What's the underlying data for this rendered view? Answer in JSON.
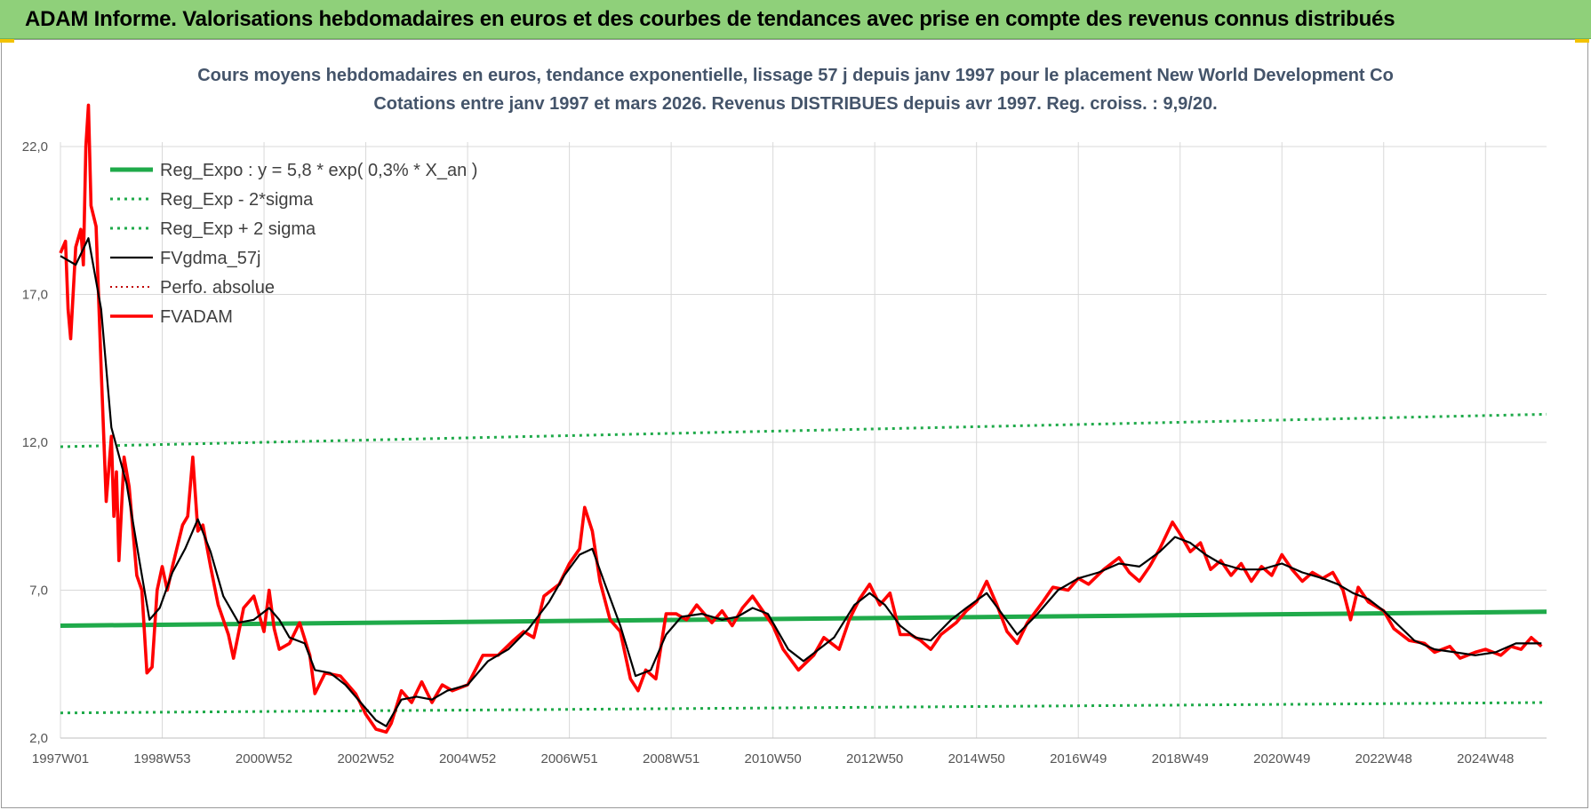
{
  "header": {
    "title": "ADAM Informe. Valorisations hebdomadaires en euros et des courbes de tendances avec prise en compte des revenus connus distribués"
  },
  "colors": {
    "banner": "#8fd07a",
    "reg_expo": "#1faa4a",
    "sigma": "#1faa4a",
    "fvgdma": "#000000",
    "perfo": "#c00000",
    "fvadam": "#ff0000",
    "grid": "#d9d9d9"
  },
  "chart_data": {
    "type": "line",
    "title": "Cours moyens hebdomadaires en euros, tendance exponentielle, lissage 57 j depuis janv 1997 pour le placement New World Development Co",
    "subtitle": "Cotations entre janv 1997 et mars 2026. Revenus DISTRIBUES depuis avr 1997. Reg. croiss. : 9,9/20.",
    "xlabel": "",
    "ylabel": "",
    "ylim": [
      2.0,
      22.0
    ],
    "xlim": [
      1997.0,
      2026.2
    ],
    "y_ticks": [
      "22,0",
      "17,0",
      "12,0",
      "7,0",
      "2,0"
    ],
    "y_tick_values": [
      22,
      17,
      12,
      7,
      2
    ],
    "x_ticks": [
      "1997W01",
      "1998W53",
      "2000W52",
      "2002W52",
      "2004W52",
      "2006W51",
      "2008W51",
      "2010W50",
      "2012W50",
      "2014W50",
      "2016W49",
      "2018W49",
      "2020W49",
      "2022W48",
      "2024W48"
    ],
    "x_tick_values": [
      1997.0,
      1999.0,
      2001.0,
      2003.0,
      2005.0,
      2007.0,
      2009.0,
      2011.0,
      2013.0,
      2015.0,
      2017.0,
      2019.0,
      2021.0,
      2023.0,
      2025.0
    ],
    "grid": true,
    "legend_position": "top-left",
    "series": [
      {
        "name": "Reg_Expo : y = 5,8 * exp( 0,3% *  X_an )",
        "style": "solid-thick",
        "points": [
          [
            1997.0,
            5.8
          ],
          [
            2026.2,
            6.27
          ]
        ]
      },
      {
        "name": "Reg_Exp - 2*sigma",
        "style": "dotted",
        "points": [
          [
            1997.0,
            2.85
          ],
          [
            2026.2,
            3.2
          ]
        ]
      },
      {
        "name": "Reg_Exp + 2 sigma",
        "style": "dotted",
        "points": [
          [
            1997.0,
            11.85
          ],
          [
            2026.2,
            12.95
          ]
        ]
      },
      {
        "name": "FVgdma_57j",
        "style": "solid-thin",
        "points": [
          [
            1997.0,
            18.3
          ],
          [
            1997.3,
            18.0
          ],
          [
            1997.55,
            18.9
          ],
          [
            1997.8,
            16.5
          ],
          [
            1998.0,
            12.5
          ],
          [
            1998.3,
            10.6
          ],
          [
            1998.55,
            8.0
          ],
          [
            1998.75,
            6.0
          ],
          [
            1998.95,
            6.4
          ],
          [
            1999.2,
            7.6
          ],
          [
            1999.45,
            8.4
          ],
          [
            1999.7,
            9.4
          ],
          [
            1999.95,
            8.3
          ],
          [
            2000.2,
            6.8
          ],
          [
            2000.5,
            5.9
          ],
          [
            2000.8,
            6.0
          ],
          [
            2001.1,
            6.4
          ],
          [
            2001.3,
            6.0
          ],
          [
            2001.5,
            5.4
          ],
          [
            2001.8,
            5.2
          ],
          [
            2002.0,
            4.3
          ],
          [
            2002.3,
            4.2
          ],
          [
            2002.6,
            3.8
          ],
          [
            2002.9,
            3.2
          ],
          [
            2003.2,
            2.6
          ],
          [
            2003.4,
            2.4
          ],
          [
            2003.7,
            3.3
          ],
          [
            2004.0,
            3.4
          ],
          [
            2004.3,
            3.3
          ],
          [
            2004.6,
            3.6
          ],
          [
            2005.0,
            3.8
          ],
          [
            2005.4,
            4.6
          ],
          [
            2005.8,
            5.0
          ],
          [
            2006.2,
            5.7
          ],
          [
            2006.6,
            6.6
          ],
          [
            2006.9,
            7.5
          ],
          [
            2007.2,
            8.2
          ],
          [
            2007.45,
            8.4
          ],
          [
            2007.7,
            7.2
          ],
          [
            2008.0,
            5.8
          ],
          [
            2008.3,
            4.1
          ],
          [
            2008.6,
            4.3
          ],
          [
            2008.9,
            5.5
          ],
          [
            2009.2,
            6.1
          ],
          [
            2009.6,
            6.2
          ],
          [
            2010.0,
            6.0
          ],
          [
            2010.3,
            6.1
          ],
          [
            2010.6,
            6.4
          ],
          [
            2010.9,
            6.2
          ],
          [
            2011.3,
            5.0
          ],
          [
            2011.6,
            4.6
          ],
          [
            2011.9,
            5.0
          ],
          [
            2012.2,
            5.4
          ],
          [
            2012.6,
            6.5
          ],
          [
            2012.9,
            6.9
          ],
          [
            2013.2,
            6.5
          ],
          [
            2013.5,
            5.8
          ],
          [
            2013.8,
            5.4
          ],
          [
            2014.1,
            5.3
          ],
          [
            2014.5,
            6.0
          ],
          [
            2014.8,
            6.4
          ],
          [
            2015.2,
            6.9
          ],
          [
            2015.5,
            6.2
          ],
          [
            2015.8,
            5.5
          ],
          [
            2016.2,
            6.2
          ],
          [
            2016.6,
            7.0
          ],
          [
            2017.0,
            7.4
          ],
          [
            2017.4,
            7.6
          ],
          [
            2017.8,
            7.9
          ],
          [
            2018.2,
            7.8
          ],
          [
            2018.6,
            8.3
          ],
          [
            2018.9,
            8.8
          ],
          [
            2019.2,
            8.6
          ],
          [
            2019.5,
            8.2
          ],
          [
            2019.8,
            7.9
          ],
          [
            2020.2,
            7.7
          ],
          [
            2020.6,
            7.7
          ],
          [
            2021.0,
            7.9
          ],
          [
            2021.4,
            7.6
          ],
          [
            2021.8,
            7.4
          ],
          [
            2022.1,
            7.2
          ],
          [
            2022.4,
            6.9
          ],
          [
            2022.7,
            6.7
          ],
          [
            2023.0,
            6.3
          ],
          [
            2023.3,
            5.8
          ],
          [
            2023.6,
            5.3
          ],
          [
            2024.0,
            5.0
          ],
          [
            2024.4,
            4.9
          ],
          [
            2024.8,
            4.8
          ],
          [
            2025.2,
            4.9
          ],
          [
            2025.6,
            5.2
          ],
          [
            2026.1,
            5.2
          ]
        ]
      },
      {
        "name": "Perfo. absolue",
        "style": "dotted-red",
        "points": []
      },
      {
        "name": "FVADAM",
        "style": "solid-thick-red",
        "points": [
          [
            1997.0,
            18.4
          ],
          [
            1997.1,
            18.8
          ],
          [
            1997.15,
            16.5
          ],
          [
            1997.2,
            15.5
          ],
          [
            1997.3,
            18.6
          ],
          [
            1997.4,
            19.2
          ],
          [
            1997.45,
            18.0
          ],
          [
            1997.5,
            22.0
          ],
          [
            1997.55,
            23.4
          ],
          [
            1997.6,
            20.0
          ],
          [
            1997.7,
            19.3
          ],
          [
            1997.8,
            14.5
          ],
          [
            1997.9,
            10.0
          ],
          [
            1998.0,
            12.2
          ],
          [
            1998.05,
            9.5
          ],
          [
            1998.1,
            11.0
          ],
          [
            1998.15,
            8.0
          ],
          [
            1998.25,
            11.5
          ],
          [
            1998.35,
            10.5
          ],
          [
            1998.5,
            7.5
          ],
          [
            1998.6,
            7.0
          ],
          [
            1998.7,
            4.2
          ],
          [
            1998.8,
            4.4
          ],
          [
            1998.9,
            7.0
          ],
          [
            1999.0,
            7.8
          ],
          [
            1999.1,
            7.0
          ],
          [
            1999.2,
            7.8
          ],
          [
            1999.3,
            8.5
          ],
          [
            1999.4,
            9.2
          ],
          [
            1999.5,
            9.5
          ],
          [
            1999.6,
            11.5
          ],
          [
            1999.7,
            9.0
          ],
          [
            1999.8,
            9.2
          ],
          [
            1999.95,
            7.8
          ],
          [
            2000.1,
            6.5
          ],
          [
            2000.3,
            5.5
          ],
          [
            2000.4,
            4.7
          ],
          [
            2000.6,
            6.4
          ],
          [
            2000.8,
            6.8
          ],
          [
            2001.0,
            5.6
          ],
          [
            2001.1,
            7.0
          ],
          [
            2001.2,
            5.7
          ],
          [
            2001.3,
            5.0
          ],
          [
            2001.5,
            5.2
          ],
          [
            2001.7,
            5.9
          ],
          [
            2001.9,
            4.8
          ],
          [
            2002.0,
            3.5
          ],
          [
            2002.2,
            4.2
          ],
          [
            2002.5,
            4.1
          ],
          [
            2002.8,
            3.5
          ],
          [
            2003.0,
            2.8
          ],
          [
            2003.2,
            2.3
          ],
          [
            2003.4,
            2.2
          ],
          [
            2003.5,
            2.5
          ],
          [
            2003.7,
            3.6
          ],
          [
            2003.9,
            3.2
          ],
          [
            2004.1,
            3.9
          ],
          [
            2004.3,
            3.2
          ],
          [
            2004.5,
            3.8
          ],
          [
            2004.7,
            3.6
          ],
          [
            2005.0,
            3.8
          ],
          [
            2005.3,
            4.8
          ],
          [
            2005.6,
            4.8
          ],
          [
            2005.9,
            5.3
          ],
          [
            2006.1,
            5.6
          ],
          [
            2006.3,
            5.4
          ],
          [
            2006.5,
            6.8
          ],
          [
            2006.8,
            7.2
          ],
          [
            2007.0,
            7.9
          ],
          [
            2007.2,
            8.4
          ],
          [
            2007.3,
            9.8
          ],
          [
            2007.45,
            9.0
          ],
          [
            2007.6,
            7.3
          ],
          [
            2007.8,
            6.0
          ],
          [
            2008.0,
            5.6
          ],
          [
            2008.2,
            4.0
          ],
          [
            2008.35,
            3.6
          ],
          [
            2008.5,
            4.3
          ],
          [
            2008.7,
            4.0
          ],
          [
            2008.9,
            6.2
          ],
          [
            2009.1,
            6.2
          ],
          [
            2009.3,
            6.0
          ],
          [
            2009.5,
            6.5
          ],
          [
            2009.8,
            5.9
          ],
          [
            2010.0,
            6.3
          ],
          [
            2010.2,
            5.8
          ],
          [
            2010.4,
            6.4
          ],
          [
            2010.6,
            6.8
          ],
          [
            2010.8,
            6.3
          ],
          [
            2011.0,
            5.8
          ],
          [
            2011.2,
            5.0
          ],
          [
            2011.5,
            4.3
          ],
          [
            2011.8,
            4.8
          ],
          [
            2012.0,
            5.4
          ],
          [
            2012.3,
            5.0
          ],
          [
            2012.5,
            6.0
          ],
          [
            2012.7,
            6.7
          ],
          [
            2012.9,
            7.2
          ],
          [
            2013.1,
            6.5
          ],
          [
            2013.3,
            6.9
          ],
          [
            2013.5,
            5.5
          ],
          [
            2013.7,
            5.5
          ],
          [
            2013.9,
            5.3
          ],
          [
            2014.1,
            5.0
          ],
          [
            2014.3,
            5.5
          ],
          [
            2014.6,
            5.9
          ],
          [
            2014.8,
            6.3
          ],
          [
            2015.0,
            6.6
          ],
          [
            2015.2,
            7.3
          ],
          [
            2015.4,
            6.5
          ],
          [
            2015.6,
            5.6
          ],
          [
            2015.8,
            5.2
          ],
          [
            2016.0,
            5.9
          ],
          [
            2016.3,
            6.6
          ],
          [
            2016.5,
            7.1
          ],
          [
            2016.8,
            7.0
          ],
          [
            2017.0,
            7.4
          ],
          [
            2017.2,
            7.2
          ],
          [
            2017.5,
            7.7
          ],
          [
            2017.8,
            8.1
          ],
          [
            2018.0,
            7.6
          ],
          [
            2018.2,
            7.3
          ],
          [
            2018.4,
            7.8
          ],
          [
            2018.6,
            8.4
          ],
          [
            2018.85,
            9.3
          ],
          [
            2019.0,
            8.9
          ],
          [
            2019.2,
            8.3
          ],
          [
            2019.4,
            8.6
          ],
          [
            2019.6,
            7.7
          ],
          [
            2019.8,
            8.0
          ],
          [
            2020.0,
            7.5
          ],
          [
            2020.2,
            7.9
          ],
          [
            2020.4,
            7.3
          ],
          [
            2020.6,
            7.8
          ],
          [
            2020.8,
            7.5
          ],
          [
            2021.0,
            8.2
          ],
          [
            2021.2,
            7.7
          ],
          [
            2021.4,
            7.3
          ],
          [
            2021.6,
            7.6
          ],
          [
            2021.8,
            7.4
          ],
          [
            2022.0,
            7.6
          ],
          [
            2022.2,
            7.0
          ],
          [
            2022.35,
            6.0
          ],
          [
            2022.5,
            7.1
          ],
          [
            2022.7,
            6.6
          ],
          [
            2023.0,
            6.3
          ],
          [
            2023.2,
            5.7
          ],
          [
            2023.5,
            5.3
          ],
          [
            2023.8,
            5.2
          ],
          [
            2024.0,
            4.9
          ],
          [
            2024.3,
            5.1
          ],
          [
            2024.5,
            4.7
          ],
          [
            2024.8,
            4.9
          ],
          [
            2025.0,
            5.0
          ],
          [
            2025.3,
            4.8
          ],
          [
            2025.5,
            5.1
          ],
          [
            2025.7,
            5.0
          ],
          [
            2025.9,
            5.4
          ],
          [
            2026.1,
            5.1
          ]
        ]
      }
    ]
  }
}
